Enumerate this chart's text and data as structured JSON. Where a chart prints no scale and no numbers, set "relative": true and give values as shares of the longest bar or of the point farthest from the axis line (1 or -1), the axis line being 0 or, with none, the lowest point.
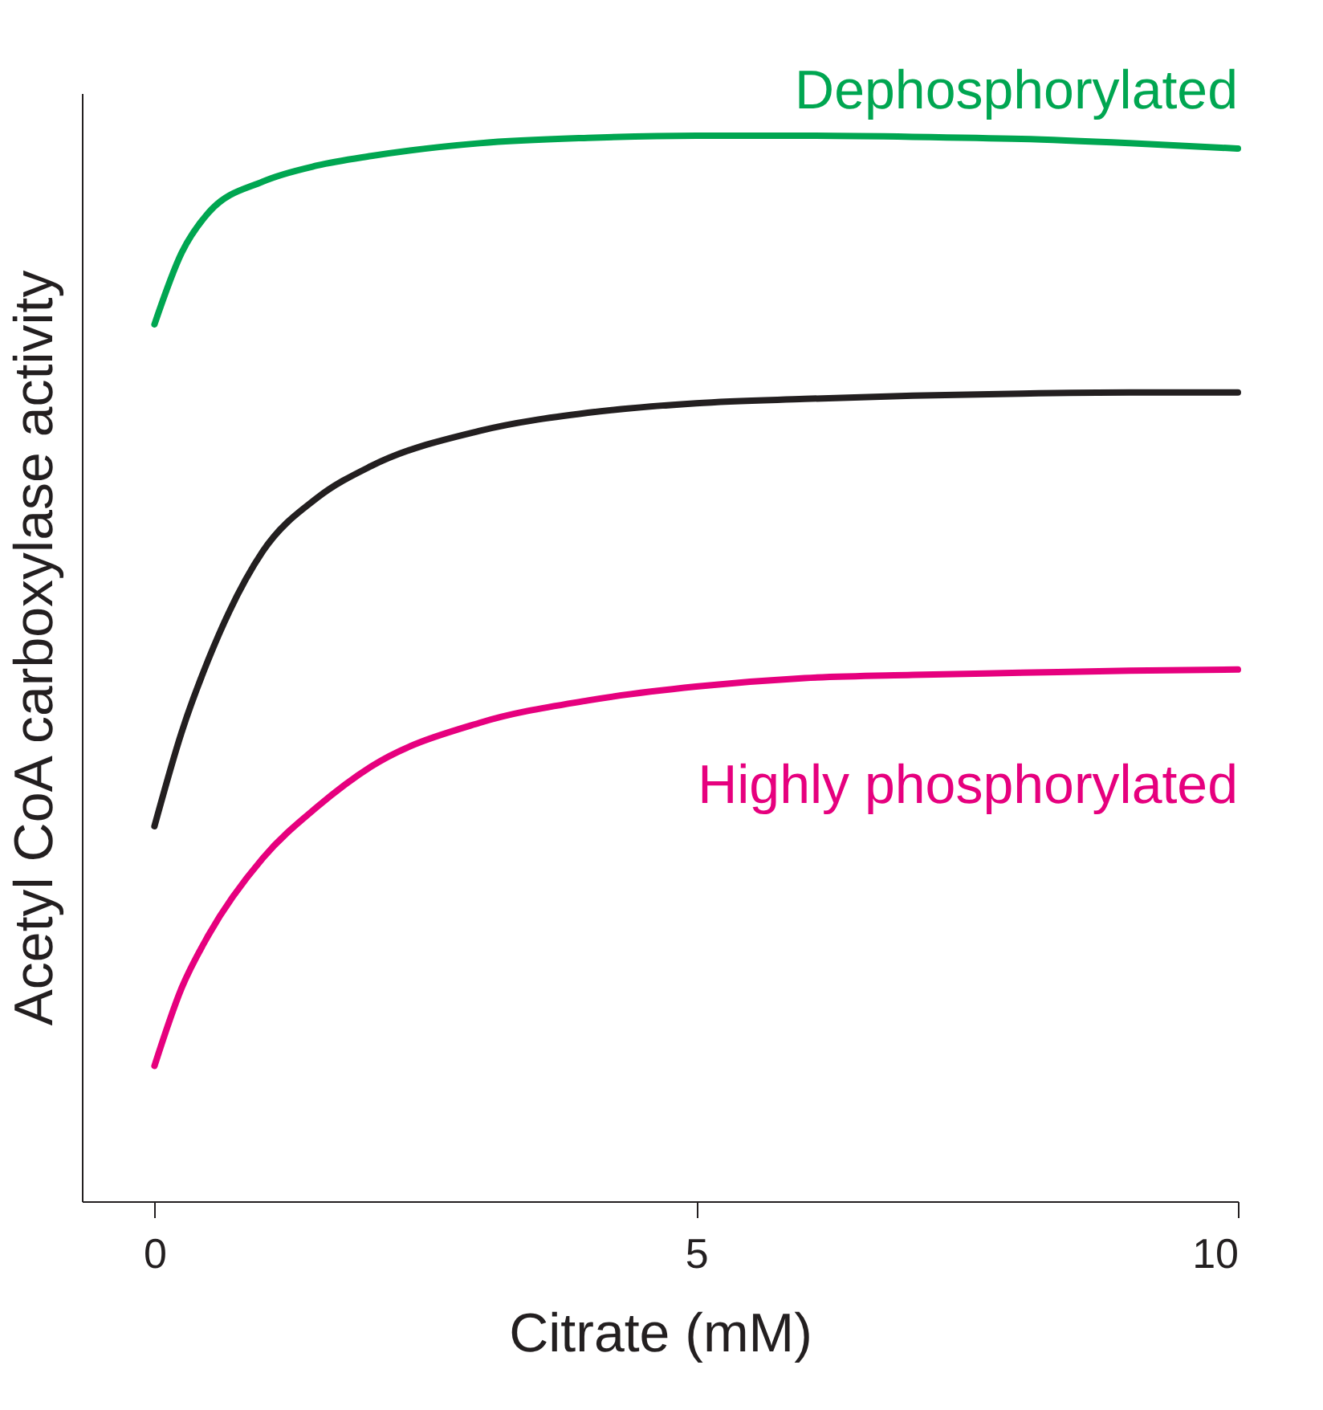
{
  "chart_data": {
    "type": "line",
    "relative": true,
    "xlabel": "Citrate (mM)",
    "ylabel": "Acetyl CoA carboxylase activity",
    "x": [
      0,
      0.25,
      0.5,
      1,
      1.5,
      2,
      3,
      4,
      5,
      6,
      7,
      8,
      9,
      10
    ],
    "xlim": [
      -0.67,
      10
    ],
    "xticks": [
      0,
      5,
      10
    ],
    "grid": false,
    "legend": false,
    "marker": "none",
    "line_style": "solid",
    "series": [
      {
        "name": "Dephosphorylated",
        "color": "#00a651",
        "values": [
          0.823,
          0.89,
          0.928,
          0.957,
          0.972,
          0.981,
          0.993,
          0.998,
          1.0,
          1.0,
          0.999,
          0.997,
          0.993,
          0.988
        ]
      },
      {
        "color": "#231f20",
        "values": [
          0.352,
          0.44,
          0.509,
          0.61,
          0.66,
          0.69,
          0.723,
          0.74,
          0.749,
          0.753,
          0.756,
          0.758,
          0.759,
          0.759
        ]
      },
      {
        "name": "Highly phosphorylated",
        "color": "#e6007e",
        "values": [
          0.127,
          0.2,
          0.25,
          0.322,
          0.37,
          0.408,
          0.449,
          0.47,
          0.483,
          0.491,
          0.494,
          0.496,
          0.498,
          0.499
        ]
      }
    ]
  }
}
